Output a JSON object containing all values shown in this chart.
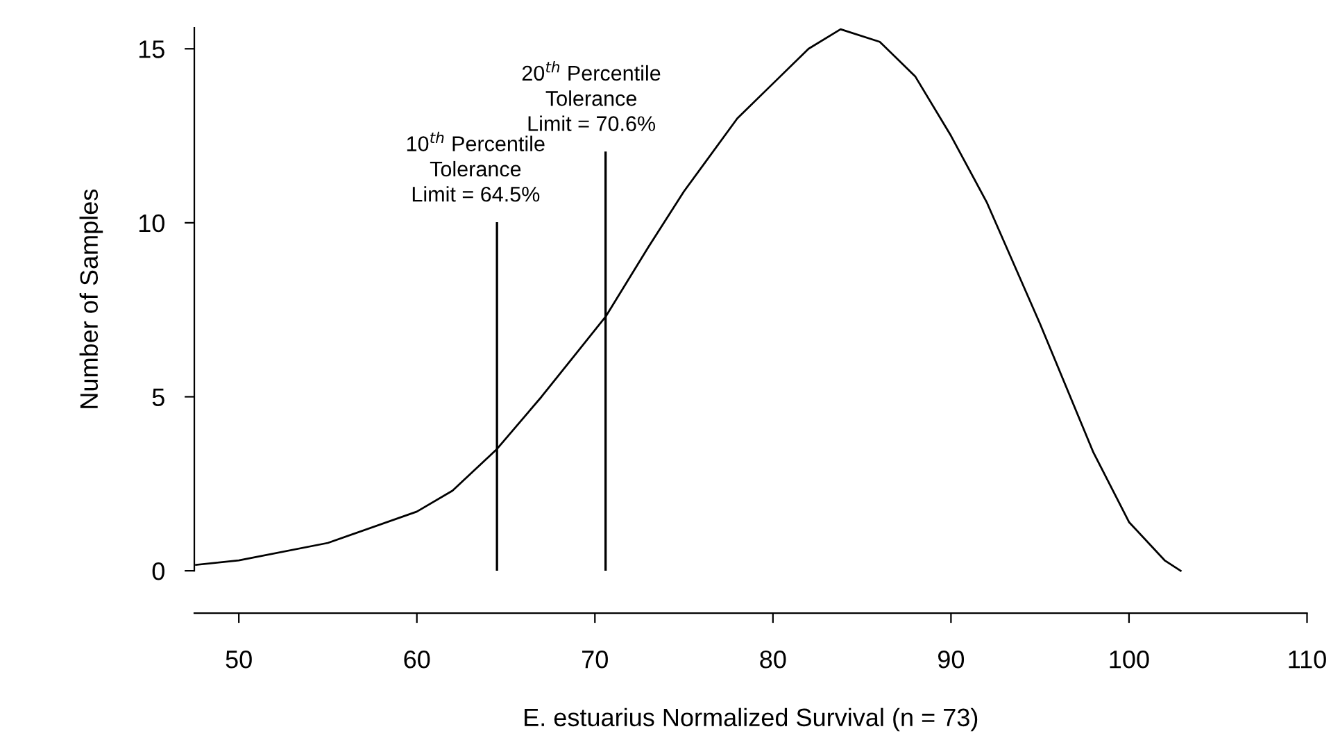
{
  "chart_data": {
    "type": "line",
    "xlabel": "E. estuarius Normalized Survival (n = 73)",
    "ylabel": "Number of Samples",
    "x": [
      47.6,
      50,
      55,
      60,
      62,
      64.5,
      67,
      70.6,
      73,
      75,
      78,
      80,
      82,
      83.8,
      86,
      88,
      90,
      92,
      95,
      98,
      100,
      102,
      102.9
    ],
    "series": [
      {
        "color": "#000000",
        "values": [
          0.17,
          0.3,
          0.8,
          1.7,
          2.3,
          3.5,
          5.0,
          7.3,
          9.3,
          10.9,
          13.0,
          14.0,
          15.0,
          15.56,
          15.2,
          14.2,
          12.5,
          10.6,
          7.1,
          3.4,
          1.4,
          0.3,
          0.0
        ]
      }
    ],
    "xlim": [
      47.5,
      110
    ],
    "xticks": [
      50,
      60,
      70,
      80,
      90,
      100,
      110
    ],
    "ylim": [
      0,
      15.6
    ],
    "yticks": [
      0,
      5,
      10,
      15
    ],
    "grid": false,
    "legend": false,
    "marker": "none",
    "line_style": "solid",
    "ref_lines": [
      {
        "axis": "x",
        "value": 64.5,
        "label": "10$^{th}$ Percentile\nTolerance\nLimit = 64.5%",
        "color": "#000000"
      },
      {
        "axis": "x",
        "value": 70.6,
        "label": "20$^{th}$ Percentile\nTolerance\nLimit = 70.6%",
        "color": "#000000"
      }
    ]
  }
}
